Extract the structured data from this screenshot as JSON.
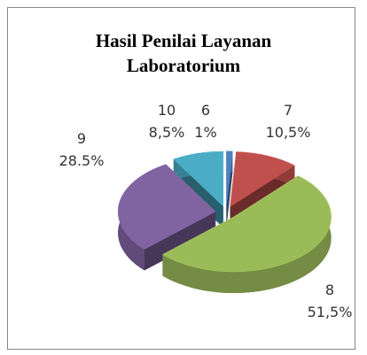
{
  "chart_data": {
    "type": "pie",
    "title": "Hasil Penilai Layanan Laboratorium",
    "categories": [
      "6",
      "7",
      "8",
      "9",
      "10"
    ],
    "values": [
      1,
      10.5,
      51.5,
      28.5,
      8.5
    ],
    "value_labels": [
      "1%",
      "10,5%",
      "51,5%",
      "28.5%",
      "8,5%"
    ],
    "colors": [
      "#4f81bd",
      "#c0504d",
      "#9bbb59",
      "#8064a2",
      "#4bacc6"
    ]
  }
}
